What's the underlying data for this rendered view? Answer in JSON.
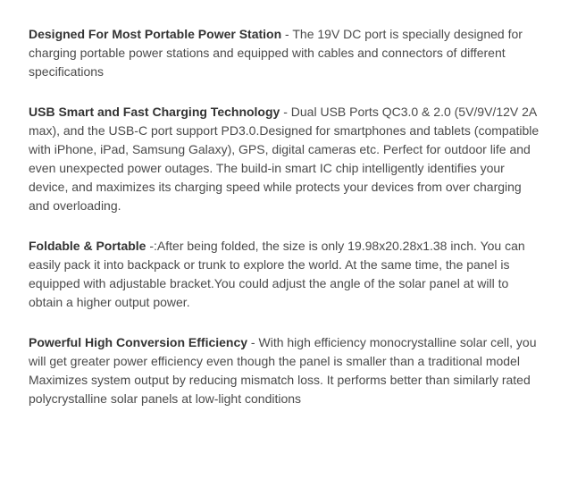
{
  "typography": {
    "font_family": "Arial, Helvetica, sans-serif",
    "font_size_pt": 10.5,
    "line_height": 1.5,
    "title_weight": "bold",
    "title_color": "#333333",
    "body_color": "#4a4a4a",
    "background_color": "#ffffff"
  },
  "features": [
    {
      "title": "Designed For Most Portable Power Station",
      "sep": " - ",
      "body": "The 19V DC port is specially designed for charging portable power stations and equipped with cables and connectors of different specifications"
    },
    {
      "title": "USB Smart and Fast Charging Technology",
      "sep": " - ",
      "body": "Dual USB Ports QC3.0 & 2.0 (5V/9V/12V 2A max), and the USB-C port support PD3.0.Designed for smartphones and tablets (compatible with iPhone, iPad, Samsung Galaxy), GPS, digital cameras etc. Perfect for outdoor life and even unexpected power outages. The build-in smart IC chip intelligently identifies your device, and maximizes its charging speed while protects your devices from over charging and overloading."
    },
    {
      "title": "Foldable & Portable",
      "sep": " -:",
      "body": "After being folded, the size is only 19.98x20.28x1.38 inch. You can easily pack it into backpack or trunk to explore the world. At the same time, the panel is equipped with adjustable bracket.You could adjust the angle of the solar panel at will to obtain a higher output power."
    },
    {
      "title": "Powerful High Conversion Efficiency",
      "sep": " - ",
      "body": "With high efficiency monocrystalline solar cell, you will get greater power efficiency even though the panel is smaller than a traditional model Maximizes system output by reducing mismatch loss. It performs better than similarly rated polycrystalline solar panels at low-light conditions"
    }
  ]
}
